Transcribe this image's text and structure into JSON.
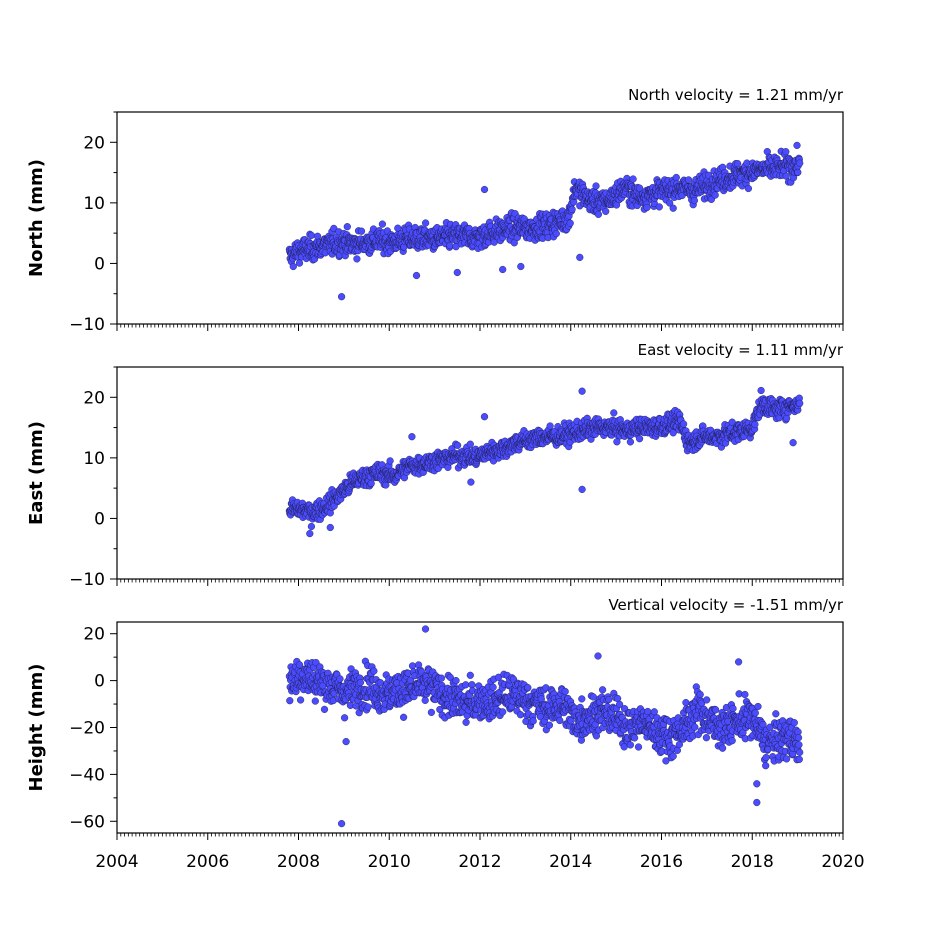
{
  "chart_data": [
    {
      "type": "scatter",
      "id": "north",
      "title": "North velocity = 1.21 mm/yr",
      "xlabel": "",
      "ylabel": "North (mm)",
      "xlim": [
        2004,
        2020
      ],
      "ylim": [
        -10,
        25
      ],
      "xticks": [
        2004,
        2006,
        2008,
        2010,
        2012,
        2014,
        2016,
        2018,
        2020
      ],
      "yticks": [
        -10,
        0,
        10,
        20
      ],
      "marker_color": "#4b4bff",
      "series": [
        {
          "x": [
            2007.8,
            2008.0,
            2008.3,
            2008.6,
            2008.9,
            2009.2,
            2009.5,
            2009.8,
            2010.1,
            2010.4,
            2010.7,
            2011.0,
            2011.3,
            2011.6,
            2011.9,
            2012.2,
            2012.5,
            2012.8,
            2013.1,
            2013.4,
            2013.7,
            2013.95,
            2014.1,
            2014.4,
            2014.7,
            2014.95,
            2015.2,
            2015.5,
            2015.8,
            2016.1,
            2016.4,
            2016.7,
            2017.0,
            2017.3,
            2017.6,
            2017.9,
            2018.2,
            2018.5,
            2018.8,
            2019.05
          ],
          "y": [
            1.0,
            2.0,
            2.5,
            3.0,
            3.5,
            3.2,
            3.5,
            3.8,
            3.6,
            4.0,
            4.2,
            4.0,
            4.4,
            4.6,
            4.2,
            5.0,
            5.5,
            6.0,
            5.8,
            6.2,
            6.8,
            7.5,
            12.5,
            10.5,
            10.0,
            11.0,
            12.5,
            11.0,
            11.5,
            12.0,
            12.5,
            12.0,
            13.0,
            13.8,
            14.5,
            15.0,
            15.5,
            15.8,
            16.0,
            16.5
          ]
        }
      ],
      "outliers": {
        "x": [
          2008.95,
          2011.5,
          2012.1,
          2012.5,
          2012.9,
          2014.2,
          2010.6
        ],
        "y": [
          -5.5,
          -1.5,
          12.2,
          -1.0,
          -0.5,
          1.0,
          -2.0
        ]
      }
    },
    {
      "type": "scatter",
      "id": "east",
      "title": "East velocity = 1.11 mm/yr",
      "xlabel": "",
      "ylabel": "East (mm)",
      "xlim": [
        2004,
        2020
      ],
      "ylim": [
        -10,
        25
      ],
      "xticks": [
        2004,
        2006,
        2008,
        2010,
        2012,
        2014,
        2016,
        2018,
        2020
      ],
      "yticks": [
        -10,
        0,
        10,
        20
      ],
      "marker_color": "#4b4bff",
      "series": [
        {
          "x": [
            2007.8,
            2008.0,
            2008.3,
            2008.6,
            2008.9,
            2009.2,
            2009.5,
            2009.8,
            2010.1,
            2010.4,
            2010.7,
            2011.0,
            2011.3,
            2011.6,
            2011.9,
            2012.2,
            2012.5,
            2012.8,
            2013.1,
            2013.4,
            2013.7,
            2014.0,
            2014.3,
            2014.6,
            2014.9,
            2015.2,
            2015.5,
            2015.8,
            2016.1,
            2016.4,
            2016.6,
            2016.9,
            2017.2,
            2017.5,
            2017.8,
            2018.0,
            2018.2,
            2018.5,
            2018.8,
            2019.05
          ],
          "y": [
            1.5,
            1.5,
            1.0,
            2.0,
            4.0,
            6.0,
            7.0,
            7.5,
            7.0,
            8.5,
            9.0,
            9.5,
            10.0,
            10.5,
            10.0,
            11.0,
            11.5,
            12.5,
            13.0,
            13.5,
            13.5,
            14.0,
            14.5,
            15.0,
            15.0,
            14.5,
            15.0,
            15.0,
            15.5,
            16.0,
            12.5,
            13.5,
            13.5,
            14.0,
            14.5,
            15.0,
            19.0,
            18.0,
            18.5,
            19.0
          ]
        }
      ],
      "outliers": {
        "x": [
          2008.25,
          2008.7,
          2011.8,
          2012.1,
          2014.25,
          2014.25,
          2018.9,
          2010.5
        ],
        "y": [
          -2.5,
          -1.5,
          6.0,
          16.8,
          21.0,
          4.8,
          12.5,
          13.5
        ]
      }
    },
    {
      "type": "scatter",
      "id": "height",
      "title": "Vertical velocity = -1.51 mm/yr",
      "xlabel": "",
      "ylabel": "Height (mm)",
      "xlim": [
        2004,
        2020
      ],
      "ylim": [
        -65,
        25
      ],
      "xticks": [
        2004,
        2006,
        2008,
        2010,
        2012,
        2014,
        2016,
        2018,
        2020
      ],
      "yticks": [
        -60,
        -40,
        -20,
        0,
        20
      ],
      "marker_color": "#4b4bff",
      "series": [
        {
          "x": [
            2007.8,
            2008.1,
            2008.4,
            2008.7,
            2009.0,
            2009.3,
            2009.6,
            2009.9,
            2010.2,
            2010.5,
            2010.8,
            2011.1,
            2011.4,
            2011.7,
            2012.0,
            2012.3,
            2012.6,
            2012.9,
            2013.2,
            2013.5,
            2013.8,
            2014.1,
            2014.4,
            2014.7,
            2015.0,
            2015.3,
            2015.6,
            2015.9,
            2016.2,
            2016.5,
            2016.8,
            2017.1,
            2017.4,
            2017.7,
            2018.0,
            2018.3,
            2018.6,
            2018.9,
            2019.05
          ],
          "y": [
            0.0,
            2.0,
            0.0,
            -2.0,
            -5.0,
            -3.0,
            -2.0,
            -6.0,
            -4.0,
            -3.0,
            -2.0,
            -5.0,
            -8.0,
            -10.0,
            -8.0,
            -9.0,
            -6.0,
            -7.0,
            -10.0,
            -12.0,
            -10.0,
            -17.0,
            -15.0,
            -13.0,
            -16.0,
            -20.0,
            -18.0,
            -22.0,
            -24.0,
            -20.0,
            -12.0,
            -18.0,
            -20.0,
            -17.0,
            -16.0,
            -27.0,
            -25.0,
            -24.0,
            -30.0
          ]
        }
      ],
      "outliers": {
        "x": [
          2008.95,
          2009.05,
          2010.8,
          2018.1,
          2018.1,
          2017.7,
          2014.6
        ],
        "y": [
          -61.0,
          -26.0,
          22.0,
          -44.0,
          -52.0,
          8.0,
          10.5
        ]
      }
    }
  ]
}
